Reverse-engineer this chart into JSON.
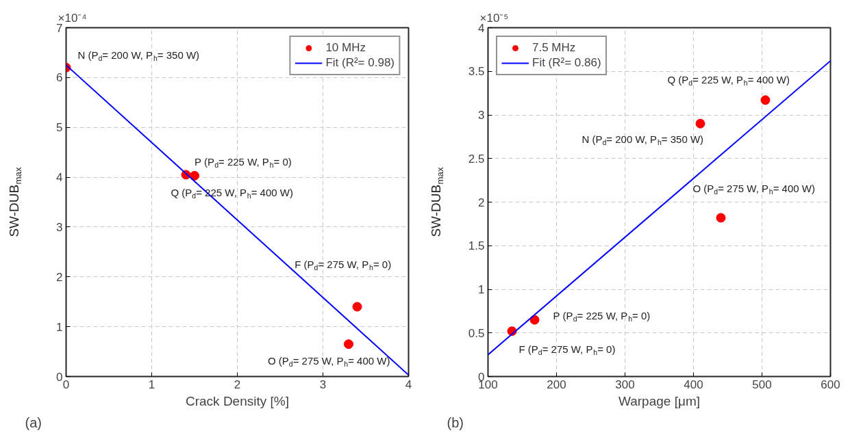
{
  "chart_data": [
    {
      "type": "scatter",
      "xlabel": "Crack Density [%]",
      "ylabel": "SW-DUB$_{max}$",
      "xlim": [
        0,
        4
      ],
      "ylim": [
        0,
        7
      ],
      "xticks": [
        0,
        1,
        2,
        3,
        4
      ],
      "yticks": [
        0,
        1,
        2,
        3,
        4,
        5,
        6,
        7
      ],
      "grid": true,
      "legend": "top right",
      "series": [
        {
          "name": "10 MHz",
          "color": "#ff0000",
          "marker": "circle",
          "x": [
            0,
            1.4,
            1.5,
            3.4,
            3.3
          ],
          "values": [
            6.2,
            4.05,
            4.03,
            1.4,
            0.65
          ]
        },
        {
          "type": "line",
          "name": "Fit (R²= 0.98)",
          "color": "#0000ff",
          "x": [
            0,
            4
          ],
          "values": [
            6.25,
            0.03
          ]
        }
      ],
      "annotations": [
        "×10⁻⁴",
        "(a)",
        {
          "text": "N (P$_{d}$= 200 W, P$_{h}$= 350 W)",
          "x": 0,
          "y": 6.2
        },
        {
          "text": "P (P$_{d}$= 225 W, P$_{h}$= 0)",
          "x": 1.5,
          "y": 4.03
        },
        {
          "text": "Q (P$_{d}$= 225 W, P$_{h}$= 400 W)",
          "x": 1.4,
          "y": 4.05
        },
        "F (P$_{d}$= 275 W, P$_{h}$= 0)",
        {
          "text": "O (P$_{d}$= 275 W, P$_{h}$= 400 W)",
          "x": 3.3,
          "y": 0.65
        }
      ]
    },
    {
      "type": "scatter",
      "xlabel": "Warpage [μm]",
      "ylabel": "SW-DUB$_{max}$",
      "xlim": [
        100,
        600
      ],
      "ylim": [
        0,
        4
      ],
      "xticks": [
        100,
        200,
        300,
        400,
        500,
        600
      ],
      "yticks": [
        0,
        0.5,
        1,
        1.5,
        2,
        2.5,
        3,
        3.5,
        4
      ],
      "grid": true,
      "legend": "top left",
      "series": [
        {
          "name": "7.5 MHz",
          "color": "#ff0000",
          "marker": "circle",
          "x": [
            135,
            168,
            410,
            440,
            505
          ],
          "values": [
            0.52,
            0.65,
            2.9,
            1.82,
            3.17
          ]
        },
        {
          "type": "line",
          "name": "Fit (R²= 0.86)",
          "color": "#0000ff",
          "x": [
            100,
            600
          ],
          "values": [
            0.25,
            3.62
          ]
        }
      ],
      "annotations": [
        "×10⁻⁵",
        "(b)",
        {
          "text": "Q (P$_{d}$= 225 W, P$_{h}$= 400 W)",
          "x": 505,
          "y": 3.17
        },
        {
          "text": "N (P$_{d}$= 200 W, P$_{h}$= 350 W)",
          "x": 410,
          "y": 2.9
        },
        {
          "text": "O (P$_{d}$= 275 W, P$_{h}$= 400 W)",
          "x": 440,
          "y": 1.82
        },
        {
          "text": "P (P$_{d}$= 225 W, P$_{h}$= 0)",
          "x": 168,
          "y": 0.65
        },
        {
          "text": "F (P$_{d}$= 275 W, P$_{h}$= 0)",
          "x": 135,
          "y": 0.52
        }
      ]
    }
  ]
}
